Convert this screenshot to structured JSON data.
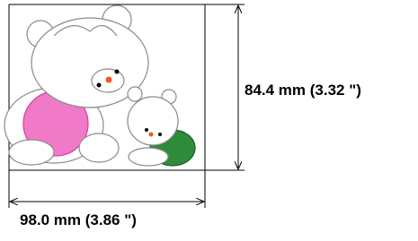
{
  "dimensions": {
    "height": "84.4 mm (3.32 \")",
    "width": "98.0 mm (3.86 \")"
  }
}
